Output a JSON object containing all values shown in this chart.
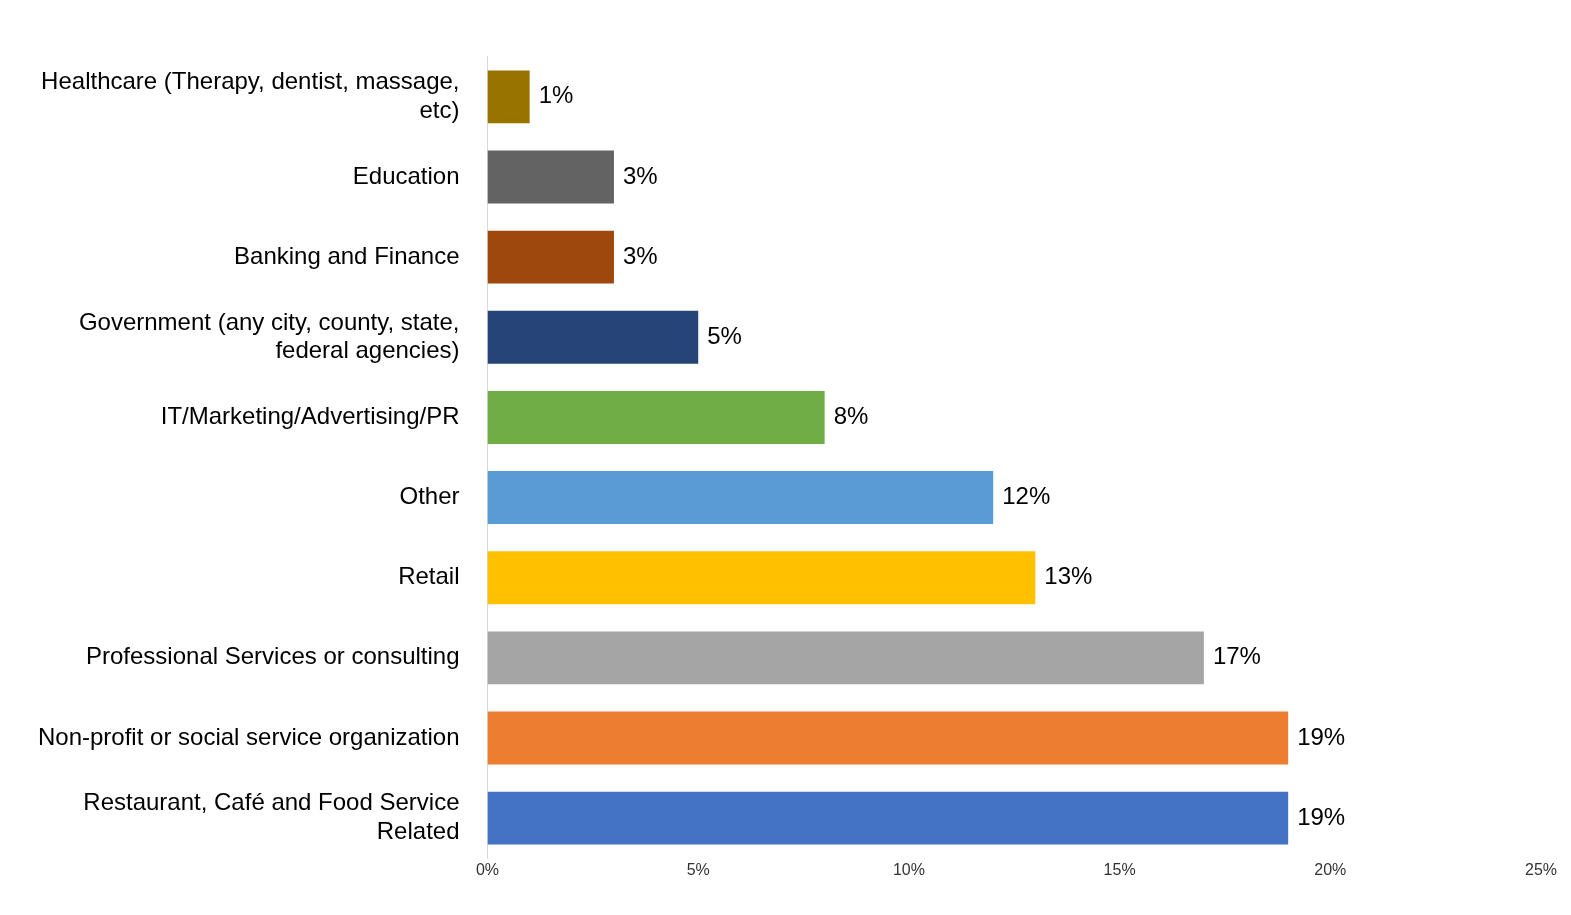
{
  "chart_data": {
    "type": "bar",
    "orientation": "horizontal",
    "categories": [
      "Healthcare (Therapy, dentist, massage, etc)",
      "Education",
      "Banking and Finance",
      "Government (any city, county, state, federal agencies)",
      "IT/Marketing/Advertising/PR",
      "Other",
      "Retail",
      "Professional Services or consulting",
      "Non-profit or social service organization",
      "Restaurant, Café and Food Service Related"
    ],
    "values": [
      1,
      3,
      3,
      5,
      8,
      12,
      13,
      17,
      19,
      19
    ],
    "colors": [
      "#997300",
      "#636363",
      "#9e480e",
      "#264478",
      "#70ad47",
      "#5b9bd5",
      "#ffc000",
      "#a5a5a5",
      "#ed7d31",
      "#4472c4"
    ],
    "xlim": [
      0,
      25
    ],
    "xticks": [
      {
        "value": 0,
        "label": "0%"
      },
      {
        "value": 5,
        "label": "5%"
      },
      {
        "value": 10,
        "label": "10%"
      },
      {
        "value": 15,
        "label": "15%"
      },
      {
        "value": 20,
        "label": "20%"
      },
      {
        "value": 25,
        "label": "25%"
      }
    ],
    "value_labels": [
      "1%",
      "3%",
      "3%",
      "5%",
      "8%",
      "12%",
      "13%",
      "17%",
      "19%",
      "19%"
    ],
    "grid": false,
    "legend": false
  }
}
